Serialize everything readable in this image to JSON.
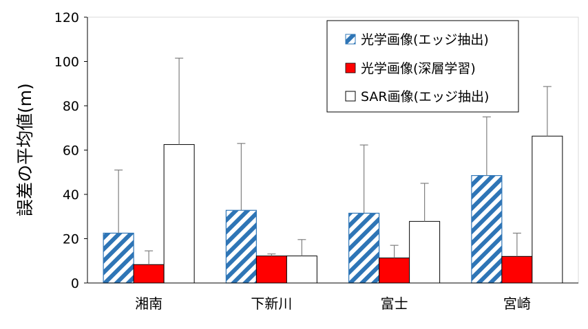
{
  "chart_data": {
    "type": "bar",
    "title": "",
    "xlabel": "",
    "ylabel": "誤差の平均値(m)",
    "ylim": [
      0,
      120
    ],
    "yticks": [
      0,
      20,
      40,
      60,
      80,
      100,
      120
    ],
    "grid": false,
    "legend_position": "top-right",
    "categories": [
      "湘南",
      "下新川",
      "富士",
      "宮崎"
    ],
    "series": [
      {
        "name": "光学画像(エッジ抽出)",
        "values": [
          22.5,
          32.8,
          31.5,
          48.5
        ],
        "error_plus": [
          28.5,
          30.2,
          30.8,
          26.5
        ],
        "style": "hatched",
        "color": "#2e75b6"
      },
      {
        "name": "光学画像(深層学習)",
        "values": [
          8.3,
          12.2,
          11.3,
          12.0
        ],
        "error_plus": [
          6.2,
          0.9,
          5.7,
          10.5
        ],
        "style": "solid",
        "color": "#ff0000"
      },
      {
        "name": "SAR画像(エッジ抽出)",
        "values": [
          62.5,
          12.2,
          27.8,
          66.3
        ],
        "error_plus": [
          39.0,
          7.4,
          17.2,
          22.4
        ],
        "style": "outline",
        "color": "#ffffff"
      }
    ]
  }
}
